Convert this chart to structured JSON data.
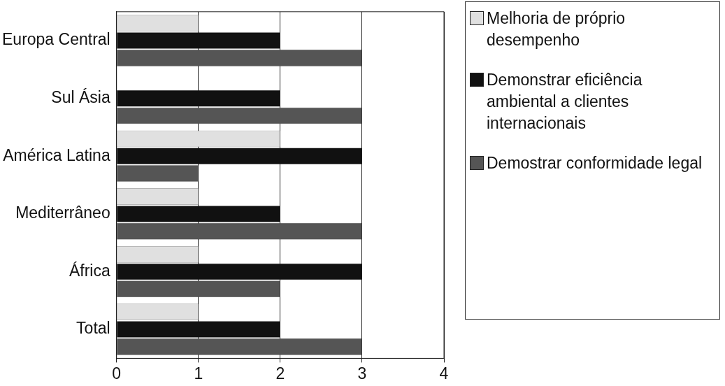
{
  "chart_data": {
    "type": "bar",
    "orientation": "horizontal",
    "categories": [
      "Europa Central",
      "Sul Ásia",
      "América Latina",
      "Mediterrâneo",
      "África",
      "Total"
    ],
    "series": [
      {
        "name": "Melhoria de próprio desempenho",
        "color": "#e0e0e0",
        "values": [
          1,
          0,
          2,
          1,
          1,
          1
        ]
      },
      {
        "name": "Demonstrar eficiência ambiental a clientes internacionais",
        "color": "#111111",
        "values": [
          2,
          2,
          3,
          2,
          3,
          2
        ]
      },
      {
        "name": "Demostrar conformidade legal",
        "color": "#555555",
        "values": [
          3,
          3,
          1,
          3,
          2,
          3
        ]
      }
    ],
    "xlim": [
      0,
      4
    ],
    "xticks": [
      0,
      1,
      2,
      3,
      4
    ],
    "grid": "x",
    "legend": "right"
  }
}
